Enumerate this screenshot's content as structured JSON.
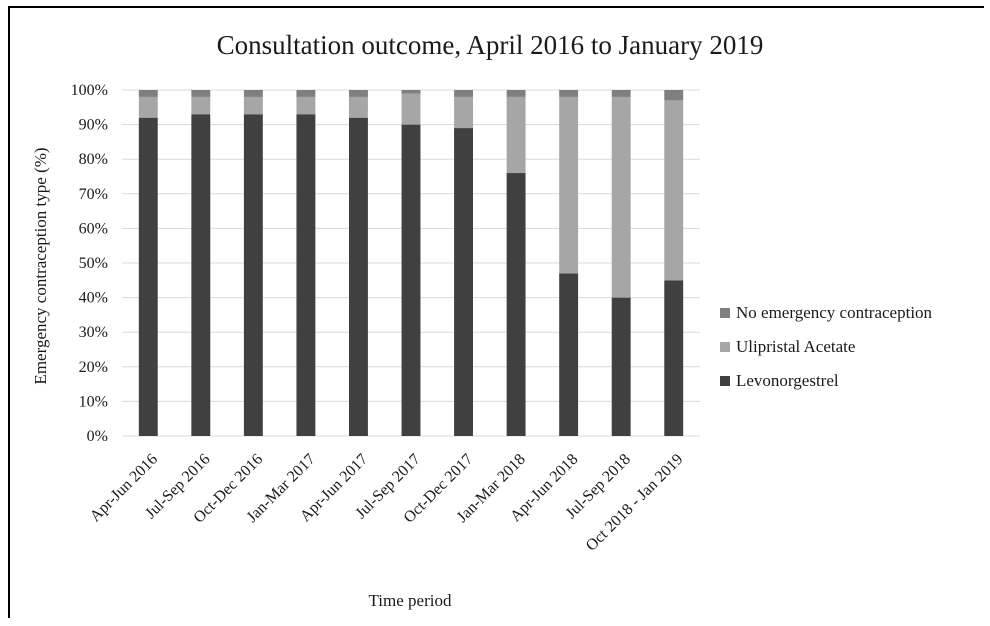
{
  "chart_data": {
    "type": "bar",
    "stacked": true,
    "title": "Consultation outcome, April 2016 to January 2019",
    "xlabel": "Time period",
    "ylabel": "Emergency contraception type (%)",
    "ylim": [
      0,
      100
    ],
    "yticks": [
      "0%",
      "10%",
      "20%",
      "30%",
      "40%",
      "50%",
      "60%",
      "70%",
      "80%",
      "90%",
      "100%"
    ],
    "grid": true,
    "legend_position": "right",
    "categories": [
      "Apr-Jun 2016",
      "Jul-Sep 2016",
      "Oct-Dec 2016",
      "Jan-Mar 2017",
      "Apr-Jun 2017",
      "Jul-Sep 2017",
      "Oct-Dec 2017",
      "Jan-Mar 2018",
      "Apr-Jun 2018",
      "Jul-Sep 2018",
      "Oct 2018 - Jan 2019"
    ],
    "series": [
      {
        "name": "Levonorgestrel",
        "color": "#404040",
        "values": [
          92,
          93,
          93,
          93,
          92,
          90,
          89,
          76,
          47,
          40,
          45
        ]
      },
      {
        "name": "Ulipristal Acetate",
        "color": "#a6a6a6",
        "values": [
          6,
          5,
          5,
          5,
          6,
          9,
          9,
          22,
          51,
          58,
          52
        ]
      },
      {
        "name": "No emergency contraception",
        "color": "#7f7f7f",
        "values": [
          2,
          2,
          2,
          2,
          2,
          1,
          2,
          2,
          2,
          2,
          3
        ]
      }
    ],
    "legend_order": [
      "No emergency contraception",
      "Ulipristal Acetate",
      "Levonorgestrel"
    ]
  }
}
